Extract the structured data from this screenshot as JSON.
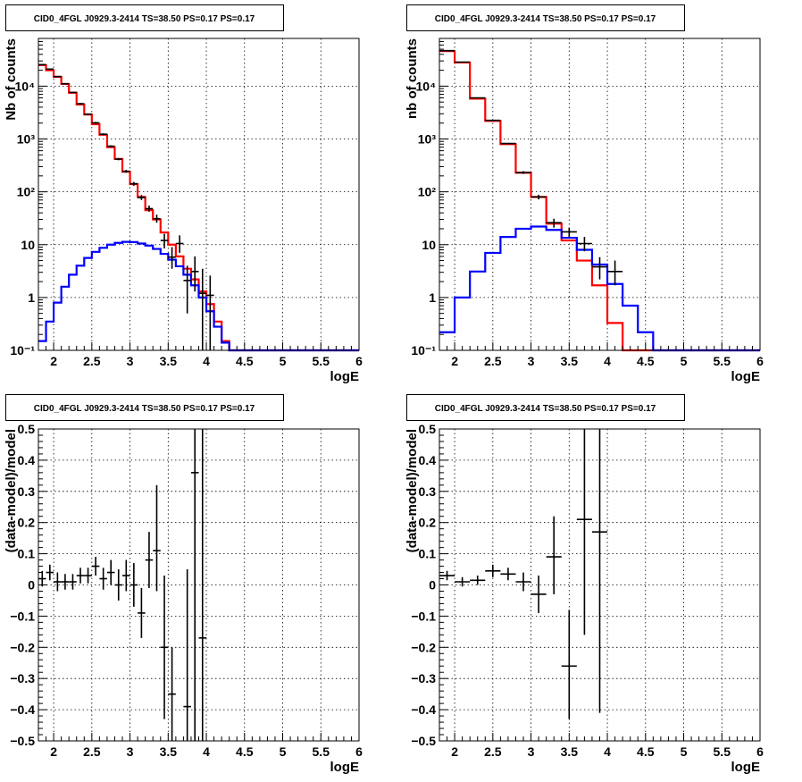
{
  "chart_data": [
    {
      "type": "line",
      "title": "CID0_4FGL J0929.3-2414 TS=38.50 PS=0.17 PS=0.17",
      "xlabel": "logE",
      "ylabel": "Nb of counts",
      "xlim": [
        1.8,
        6.0
      ],
      "ylim": [
        0.1,
        80000
      ],
      "yscale": "log",
      "grid": true,
      "xticks": [
        "2",
        "2.5",
        "3",
        "3.5",
        "4",
        "4.5",
        "5",
        "5.5",
        "6"
      ],
      "yticks": [
        "10⁻¹",
        "1",
        "10",
        "10²",
        "10³",
        "10⁴"
      ],
      "bin_edges": [
        1.8,
        1.9,
        2.0,
        2.1,
        2.2,
        2.3,
        2.4,
        2.5,
        2.6,
        2.7,
        2.8,
        2.9,
        3.0,
        3.1,
        3.2,
        3.3,
        3.4,
        3.5,
        3.6,
        3.7,
        3.8,
        3.9,
        4.0,
        4.1,
        4.2,
        4.3,
        4.4,
        4.5,
        4.6,
        4.7,
        4.8,
        4.9,
        5.0,
        5.1,
        5.2,
        5.3,
        5.4,
        5.5,
        5.6,
        5.7,
        5.8,
        5.9,
        6.0
      ],
      "series": [
        {
          "color": "#ff0000",
          "style": "hist",
          "values": [
            25000,
            20000,
            15000,
            11000,
            7500,
            4500,
            2900,
            1900,
            1200,
            700,
            420,
            240,
            140,
            80,
            45,
            30,
            17,
            10,
            6,
            3.5,
            2.2,
            1.3,
            0.75,
            0.35,
            0.15,
            0.1,
            0.1,
            0.1,
            0.1,
            0.1,
            0.1,
            0.1,
            0.1,
            0.1,
            0.1,
            0.1,
            0.1,
            0.1,
            0.1,
            0.1,
            0.1,
            0.1
          ]
        },
        {
          "color": "#0000ff",
          "style": "hist",
          "values": [
            0.15,
            0.35,
            0.8,
            1.6,
            2.7,
            4.0,
            5.6,
            7.3,
            8.7,
            10.0,
            10.8,
            11.3,
            11.2,
            10.5,
            9.6,
            8.3,
            6.7,
            5.2,
            3.9,
            2.7,
            1.7,
            1.0,
            0.55,
            0.28,
            0.14,
            0.1,
            0.1,
            0.1,
            0.1,
            0.1,
            0.1,
            0.1,
            0.1,
            0.1,
            0.1,
            0.1,
            0.1,
            0.1,
            0.1,
            0.1,
            0.1,
            0.1
          ]
        },
        {
          "color": "#000000",
          "style": "points",
          "x": [
            1.85,
            1.95,
            2.05,
            2.15,
            2.25,
            2.35,
            2.45,
            2.55,
            2.65,
            2.75,
            2.85,
            2.95,
            3.05,
            3.15,
            3.25,
            3.35,
            3.45,
            3.55,
            3.65,
            3.75,
            3.85,
            3.95,
            4.05
          ],
          "y": [
            25500,
            21000,
            15200,
            11100,
            7600,
            4650,
            2950,
            2020,
            1230,
            730,
            415,
            245,
            142,
            78,
            48,
            31,
            12,
            5.8,
            10.5,
            2.1,
            3.1,
            1.2,
            1.1
          ],
          "ylow": [
            24900,
            20500,
            14800,
            10800,
            7400,
            4500,
            2850,
            1930,
            1180,
            700,
            395,
            230,
            130,
            70,
            42,
            26,
            8.5,
            3.5,
            7,
            0.5,
            1.3,
            0.1,
            0.1
          ],
          "yhigh": [
            26100,
            21500,
            15600,
            11400,
            7800,
            4800,
            3050,
            2110,
            1280,
            760,
            435,
            260,
            154,
            87,
            55,
            37,
            16,
            9,
            15,
            4,
            6,
            3.5,
            2.6
          ]
        }
      ]
    },
    {
      "type": "line",
      "title": "CID0_4FGL J0929.3-2414 TS=38.50 PS=0.17 PS=0.17",
      "xlabel": "logE",
      "ylabel": "nb of counts",
      "xlim": [
        1.8,
        6.0
      ],
      "ylim": [
        0.1,
        80000
      ],
      "yscale": "log",
      "grid": true,
      "xticks": [
        "2",
        "2.5",
        "3",
        "3.5",
        "4",
        "4.5",
        "5",
        "5.5",
        "6"
      ],
      "yticks": [
        "10⁻¹",
        "1",
        "10",
        "10²",
        "10³",
        "10⁴"
      ],
      "bin_edges": [
        1.8,
        2.0,
        2.2,
        2.4,
        2.6,
        2.8,
        3.0,
        3.2,
        3.4,
        3.6,
        3.8,
        4.0,
        4.2,
        4.4,
        4.6,
        4.8,
        5.0,
        5.2,
        5.4,
        5.6,
        5.8,
        6.0
      ],
      "series": [
        {
          "color": "#ff0000",
          "style": "hist",
          "values": [
            46000,
            28000,
            5800,
            2200,
            800,
            230,
            80,
            25,
            12,
            5,
            1.7,
            0.33,
            0.1,
            0.1,
            0.1,
            0.1,
            0.1,
            0.1,
            0.1,
            0.1,
            0.1
          ]
        },
        {
          "color": "#0000ff",
          "style": "hist",
          "values": [
            0.22,
            1.0,
            3.1,
            7.0,
            14.0,
            20.0,
            22.0,
            19.0,
            13.5,
            8.0,
            4.2,
            1.8,
            0.7,
            0.22,
            0.1,
            0.1,
            0.1,
            0.1,
            0.1,
            0.1,
            0.1
          ]
        },
        {
          "color": "#000000",
          "style": "points",
          "x": [
            1.9,
            2.1,
            2.3,
            2.5,
            2.7,
            2.9,
            3.1,
            3.3,
            3.5,
            3.7,
            3.9,
            4.1
          ],
          "y": [
            47000,
            28500,
            6000,
            2250,
            820,
            232,
            80,
            26,
            17.5,
            10.5,
            3.8,
            3.1
          ],
          "ylow": [
            46500,
            28200,
            5900,
            2200,
            795,
            218,
            72,
            21,
            14,
            7.5,
            2.2,
            1.7
          ],
          "yhigh": [
            47500,
            28800,
            6100,
            2300,
            845,
            246,
            88,
            31,
            21,
            14,
            5.8,
            5.0
          ]
        }
      ]
    },
    {
      "type": "scatter",
      "title": "CID0_4FGL J0929.3-2414 TS=38.50 PS=0.17 PS=0.17",
      "xlabel": "logE",
      "ylabel": "(data-model)/model",
      "xlim": [
        1.8,
        6.0
      ],
      "ylim": [
        -0.5,
        0.5
      ],
      "grid": true,
      "xticks": [
        "2",
        "2.5",
        "3",
        "3.5",
        "4",
        "4.5",
        "5",
        "5.5",
        "6"
      ],
      "yticks": [
        "−0.5",
        "−0.4",
        "−0.3",
        "−0.2",
        "−0.1",
        "0",
        "0.1",
        "0.2",
        "0.3",
        "0.4",
        "0.5"
      ],
      "series": [
        {
          "color": "#000000",
          "x": [
            1.85,
            1.95,
            2.05,
            2.15,
            2.25,
            2.35,
            2.45,
            2.55,
            2.65,
            2.75,
            2.85,
            2.95,
            3.05,
            3.15,
            3.25,
            3.35,
            3.45,
            3.55,
            3.75,
            3.85,
            3.95
          ],
          "y": [
            0.02,
            0.04,
            0.01,
            0.01,
            0.01,
            0.03,
            0.03,
            0.06,
            0.02,
            0.04,
            0.0,
            0.03,
            0.0,
            -0.09,
            0.08,
            0.11,
            -0.2,
            -0.35,
            -0.39,
            0.36,
            -0.17
          ],
          "ylow": [
            -0.005,
            0.015,
            -0.02,
            -0.015,
            -0.015,
            0.005,
            0.005,
            0.03,
            -0.015,
            0.0,
            -0.05,
            -0.02,
            -0.07,
            -0.17,
            -0.01,
            -0.02,
            -0.43,
            -0.5,
            -0.5,
            -0.5,
            -0.5
          ],
          "yhigh": [
            0.045,
            0.065,
            0.04,
            0.035,
            0.035,
            0.055,
            0.055,
            0.09,
            0.055,
            0.08,
            0.05,
            0.08,
            0.07,
            -0.01,
            0.17,
            0.32,
            0.03,
            -0.2,
            0.05,
            0.5,
            0.5
          ]
        }
      ]
    },
    {
      "type": "scatter",
      "title": "CID0_4FGL J0929.3-2414 TS=38.50 PS=0.17 PS=0.17",
      "xlabel": "logE",
      "ylabel": "(data-model)/model",
      "xlim": [
        1.8,
        6.0
      ],
      "ylim": [
        -0.5,
        0.5
      ],
      "grid": true,
      "xticks": [
        "2",
        "2.5",
        "3",
        "3.5",
        "4",
        "4.5",
        "5",
        "5.5",
        "6"
      ],
      "yticks": [
        "−0.5",
        "−0.4",
        "−0.3",
        "−0.2",
        "−0.1",
        "0",
        "0.1",
        "0.2",
        "0.3",
        "0.4",
        "0.5"
      ],
      "series": [
        {
          "color": "#000000",
          "x": [
            1.9,
            2.1,
            2.3,
            2.5,
            2.7,
            2.9,
            3.1,
            3.3,
            3.5,
            3.7,
            3.9
          ],
          "y": [
            0.03,
            0.01,
            0.015,
            0.045,
            0.035,
            0.01,
            -0.03,
            0.09,
            -0.26,
            0.21,
            0.17
          ],
          "ylow": [
            0.015,
            -0.005,
            0.0,
            0.025,
            0.015,
            -0.02,
            -0.09,
            -0.03,
            -0.43,
            -0.16,
            -0.41
          ],
          "yhigh": [
            0.045,
            0.025,
            0.03,
            0.065,
            0.055,
            0.04,
            0.03,
            0.22,
            -0.08,
            0.5,
            0.5
          ]
        }
      ]
    }
  ]
}
